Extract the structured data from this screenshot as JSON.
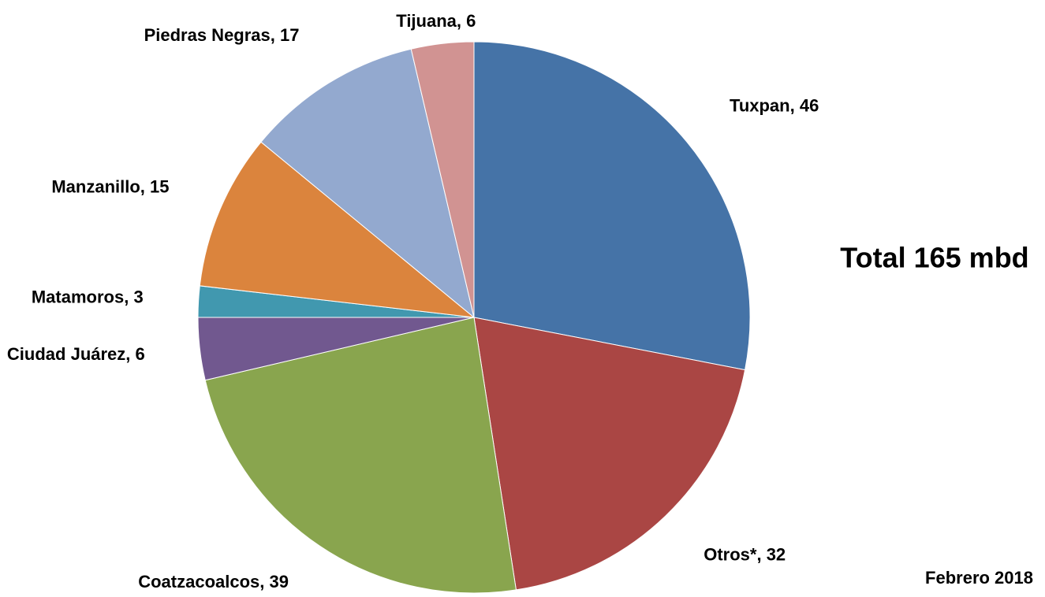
{
  "chart_data": {
    "type": "pie",
    "values": [
      46,
      32,
      39,
      6,
      3,
      15,
      17,
      6
    ],
    "value_labels": [
      "Tuxpan, 46",
      "Otros*, 32",
      "Coatzacoalcos, 39",
      "Ciudad Juárez, 6",
      "Matamoros, 3",
      "Manzanillo, 15",
      "Piedras Negras, 17",
      "Tijuana, 6"
    ],
    "colors": [
      "#4573a7",
      "#aa4644",
      "#89a54e",
      "#71588f",
      "#4198af",
      "#db843d",
      "#93a9cf",
      "#d19392"
    ],
    "annotations": [
      "Total 165 mbd",
      "Febrero 2018"
    ]
  }
}
